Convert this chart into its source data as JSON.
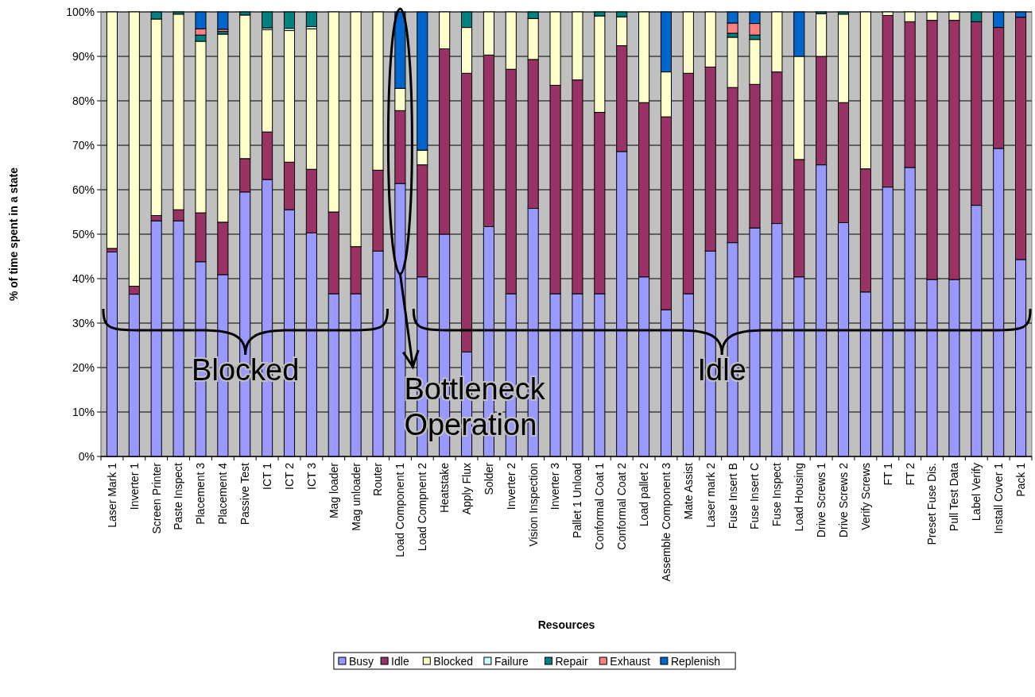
{
  "chart_data": {
    "type": "bar",
    "stacked": true,
    "xlabel": "Resources",
    "ylabel": "% of time spent in  a state",
    "categories": [
      "Laser Mark 1",
      "Inverter 1",
      "Screen Printer",
      "Paste Inspect",
      "Placement 3",
      "Placement 4",
      "Passive Test",
      "ICT 1",
      "ICT 2",
      "ICT 3",
      "Mag loader",
      "Mag unloader",
      "Router",
      "Load Component 1",
      "Load Compnent 2",
      "Heatstake",
      "Apply Flux",
      "Solder",
      "Inverter 2",
      "Vision Inspection",
      "Inverter 3",
      "Pallet 1 Unload",
      "Conformal Coat 1",
      "Conformal Coat 2",
      "Load pallet 2",
      "Assemble Component 3",
      "Mate Assist",
      "Laser mark 2",
      "Fuse Insert B",
      "Fuse Insert C",
      "Fuse Inspect",
      "Load Housing",
      "Drive Screws 1",
      "Drive Screws 2",
      "Verify Screws",
      "FT 1",
      "FT 2",
      "Preset Fuse Dis.",
      "Pull Test Data",
      "Label Verify",
      "Install Cover 1",
      "Pack 1"
    ],
    "series": [
      {
        "name": "Busy",
        "color": "#9999ff",
        "values": [
          46,
          36.5,
          53,
          53,
          43.8,
          40.9,
          59.5,
          62.3,
          55.5,
          50.3,
          36.6,
          36.6,
          46.2,
          61.4,
          40.4,
          50,
          23.5,
          51.7,
          36.6,
          55.8,
          36.6,
          36.6,
          36.6,
          68.6,
          40.4,
          33,
          36.6,
          46.2,
          48.1,
          51.4,
          52.4,
          40.4,
          65.6,
          52.6,
          37,
          60.6,
          65,
          39.8,
          39.8,
          56.5,
          69.3,
          44.3
        ]
      },
      {
        "name": "Idle",
        "color": "#993366",
        "values": [
          0.8,
          1.8,
          1.2,
          2.5,
          11,
          11.8,
          7.5,
          10.7,
          10.7,
          14.3,
          18.4,
          10.6,
          18.2,
          16.4,
          25.2,
          41.7,
          62.7,
          38.6,
          50.5,
          33.5,
          46.9,
          48.1,
          40.8,
          23.8,
          39.2,
          43.4,
          49.6,
          41.4,
          34.9,
          32.3,
          34.1,
          26.4,
          24.4,
          27,
          27.7,
          38.6,
          32.8,
          58.3,
          58.3,
          41.3,
          27.2,
          54.5
        ]
      },
      {
        "name": "Blocked",
        "color": "#ffffcc",
        "values": [
          53.2,
          61.7,
          44.2,
          44,
          38.6,
          42.3,
          32.3,
          23,
          29.6,
          31.6,
          45,
          52.8,
          35.6,
          5,
          3.3,
          8.3,
          10.3,
          9.7,
          12.9,
          9.2,
          16.5,
          15.3,
          21.7,
          6.5,
          20.4,
          10.1,
          13.8,
          12.4,
          11.3,
          10.1,
          13.5,
          23.2,
          9.6,
          19.9,
          35.3,
          0.8,
          2.2,
          1.9,
          1.9,
          null,
          null,
          null
        ]
      },
      {
        "name": "Failure",
        "color": "#ccffff",
        "values": [
          null,
          null,
          null,
          null,
          null,
          null,
          null,
          0.4,
          0.5,
          0.5,
          null,
          null,
          null,
          null,
          null,
          null,
          null,
          null,
          null,
          null,
          null,
          null,
          null,
          null,
          null,
          null,
          null,
          null,
          null,
          null,
          null,
          null,
          null,
          null,
          null,
          null,
          null,
          null,
          null,
          null,
          null,
          null
        ]
      },
      {
        "name": "Repair",
        "color": "#008080",
        "values": [
          null,
          null,
          1.6,
          0.5,
          1.4,
          0.6,
          0.7,
          3.6,
          3.7,
          3.3,
          null,
          null,
          null,
          null,
          null,
          null,
          3.5,
          null,
          null,
          1.5,
          null,
          null,
          0.9,
          1.1,
          null,
          null,
          null,
          null,
          0.9,
          1,
          null,
          null,
          0.4,
          0.5,
          null,
          null,
          null,
          null,
          null,
          2.2,
          null,
          null
        ]
      },
      {
        "name": "Exhaust",
        "color": "#ff8080",
        "values": [
          null,
          null,
          null,
          null,
          1.4,
          0.5,
          null,
          null,
          null,
          null,
          null,
          null,
          null,
          null,
          null,
          null,
          null,
          null,
          null,
          null,
          null,
          null,
          null,
          null,
          null,
          null,
          null,
          null,
          2.3,
          2.6,
          null,
          null,
          null,
          null,
          null,
          null,
          null,
          null,
          null,
          null,
          null,
          null
        ]
      },
      {
        "name": "Replenish",
        "color": "#0066cc",
        "values": [
          null,
          null,
          null,
          null,
          3.8,
          3.9,
          null,
          null,
          null,
          null,
          null,
          null,
          null,
          17.2,
          31.1,
          null,
          null,
          null,
          null,
          null,
          null,
          null,
          null,
          null,
          null,
          13.5,
          null,
          null,
          2.5,
          2.6,
          null,
          10,
          null,
          null,
          null,
          null,
          null,
          null,
          null,
          null,
          3.5,
          1.2
        ]
      }
    ],
    "ylim": [
      0,
      100
    ],
    "yticks": [
      {
        "value": 0,
        "label": "0%"
      },
      {
        "value": 10,
        "label": "10%"
      },
      {
        "value": 20,
        "label": "20%"
      },
      {
        "value": 30,
        "label": "30%"
      },
      {
        "value": 40,
        "label": "40%"
      },
      {
        "value": 50,
        "label": "50%"
      },
      {
        "value": 60,
        "label": "60%"
      },
      {
        "value": 70,
        "label": "70%"
      },
      {
        "value": 80,
        "label": "80%"
      },
      {
        "value": 90,
        "label": "90%"
      },
      {
        "value": 100,
        "label": "100%"
      }
    ],
    "grid": "y",
    "legend": "bottom",
    "annotations": [
      "Blocked",
      "Bottleneck Operation",
      "Idle"
    ]
  }
}
